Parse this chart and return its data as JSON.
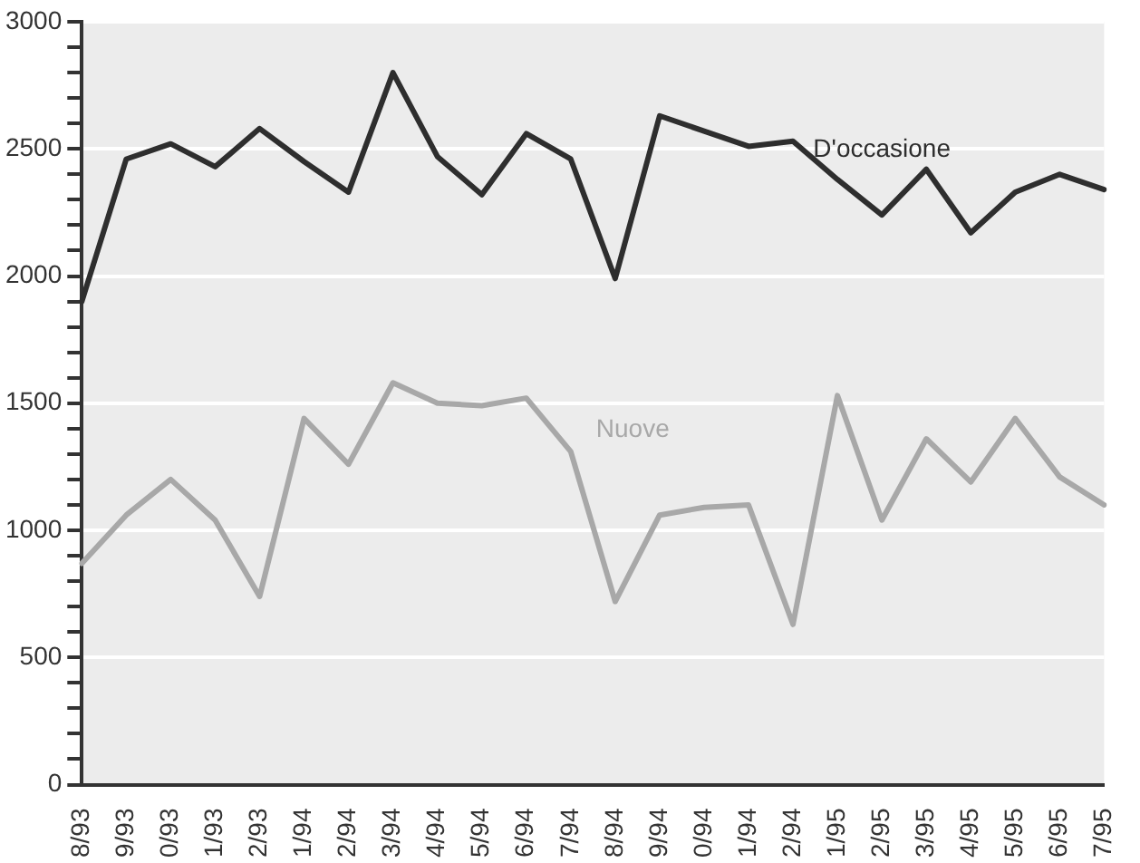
{
  "chart_data": {
    "type": "line",
    "categories": [
      "8/93",
      "9/93",
      "0/93",
      "1/93",
      "2/93",
      "1/94",
      "2/94",
      "3/94",
      "4/94",
      "5/94",
      "6/94",
      "7/94",
      "8/94",
      "9/94",
      "0/94",
      "1/94",
      "2/94",
      "1/95",
      "2/95",
      "3/95",
      "4/95",
      "5/95",
      "6/95",
      "7/95"
    ],
    "series": [
      {
        "name": "D'occasione",
        "color": "#2e2e2e",
        "values": [
          1900,
          2460,
          2520,
          2430,
          2580,
          2450,
          2330,
          2800,
          2470,
          2320,
          2560,
          2460,
          1990,
          2630,
          2570,
          2510,
          2530,
          2380,
          2240,
          2420,
          2170,
          2330,
          2400,
          2340
        ]
      },
      {
        "name": "Nuove",
        "color": "#a8a8a8",
        "values": [
          870,
          1060,
          1200,
          1040,
          740,
          1440,
          1260,
          1580,
          1500,
          1490,
          1520,
          1310,
          720,
          1060,
          1090,
          1100,
          630,
          1530,
          1040,
          1360,
          1190,
          1440,
          1210,
          1100
        ]
      }
    ],
    "ylim": [
      0,
      3000
    ],
    "yticks": [
      0,
      {
        "value": 100,
        "label": null
      },
      {
        "value": 200,
        "label": null
      },
      {
        "value": 300,
        "label": null
      },
      {
        "value": 400,
        "label": null
      },
      500,
      {
        "value": 600,
        "label": null
      },
      {
        "value": 700,
        "label": null
      },
      {
        "value": 800,
        "label": null
      },
      {
        "value": 900,
        "label": null
      },
      1000,
      {
        "value": 1100,
        "label": null
      },
      {
        "value": 1200,
        "label": null
      },
      {
        "value": 1300,
        "label": null
      },
      {
        "value": 1400,
        "label": null
      },
      1500,
      {
        "value": 1600,
        "label": null
      },
      {
        "value": 1700,
        "label": null
      },
      {
        "value": 1800,
        "label": null
      },
      {
        "value": 1900,
        "label": null
      },
      2000,
      {
        "value": 2100,
        "label": null
      },
      {
        "value": 2200,
        "label": null
      },
      {
        "value": 2300,
        "label": null
      },
      {
        "value": 2400,
        "label": null
      },
      2500,
      {
        "value": 2600,
        "label": null
      },
      {
        "value": 2700,
        "label": null
      },
      {
        "value": 2800,
        "label": null
      },
      {
        "value": 2900,
        "label": null
      },
      3000
    ],
    "grid": "y",
    "legend": false,
    "marker": "none",
    "line_style": "solid"
  }
}
